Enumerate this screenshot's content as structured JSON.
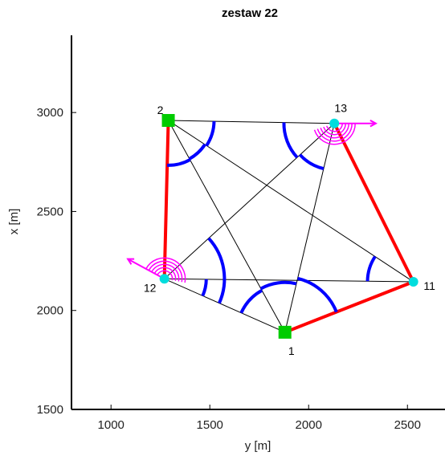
{
  "chart_data": {
    "type": "network-plot",
    "title": "zestaw 22",
    "xlabel": "y [m]",
    "ylabel": "x [m]",
    "xlim": [
      800,
      2690
    ],
    "ylim": [
      1500,
      3390
    ],
    "xticks": [
      1000,
      1500,
      2000,
      2500
    ],
    "yticks": [
      1500,
      2000,
      2500,
      3000
    ],
    "grid": false,
    "colors": {
      "thin_line": "#000000",
      "bold_line": "#ff0000",
      "angle_arc": "#0000ff",
      "direction_arrow": "#ff00ff",
      "fixed_point": "#00cc00",
      "new_point": "#00dddd"
    },
    "points": [
      {
        "id": "1",
        "y": 1880,
        "x": 1890,
        "kind": "fixed"
      },
      {
        "id": "2",
        "y": 1290,
        "x": 2960,
        "kind": "fixed"
      },
      {
        "id": "11",
        "y": 2530,
        "x": 2145,
        "kind": "new"
      },
      {
        "id": "12",
        "y": 1270,
        "x": 2160,
        "kind": "new"
      },
      {
        "id": "13",
        "y": 2130,
        "x": 2945,
        "kind": "new"
      }
    ],
    "bold_lines": [
      [
        "2",
        "12"
      ],
      [
        "1",
        "11"
      ],
      [
        "11",
        "13"
      ]
    ],
    "thin_lines": [
      [
        "2",
        "13"
      ],
      [
        "2",
        "11"
      ],
      [
        "2",
        "1"
      ],
      [
        "12",
        "13"
      ],
      [
        "12",
        "11"
      ],
      [
        "12",
        "1"
      ],
      [
        "13",
        "1"
      ]
    ],
    "angle_arcs": [
      {
        "at": "2",
        "from": "12",
        "to": "1"
      },
      {
        "at": "2",
        "from": "1",
        "to": "11"
      },
      {
        "at": "2",
        "from": "11",
        "to": "13"
      },
      {
        "at": "13",
        "from": "2",
        "to": "12"
      },
      {
        "at": "13",
        "from": "12",
        "to": "1"
      },
      {
        "at": "11",
        "from": "12",
        "to": "2"
      },
      {
        "at": "12",
        "from": "13",
        "to": "1"
      },
      {
        "at": "12",
        "from": "1",
        "to": "11"
      },
      {
        "at": "1",
        "from": "11",
        "to": "13"
      },
      {
        "at": "1",
        "from": "13",
        "to": "2"
      },
      {
        "at": "1",
        "from": "2",
        "to": "12"
      }
    ],
    "direction_arrows": [
      {
        "at": "13",
        "toward_y": 2340,
        "toward_x": 2945
      },
      {
        "at": "12",
        "toward_y": 1085,
        "toward_x": 2260
      }
    ]
  }
}
